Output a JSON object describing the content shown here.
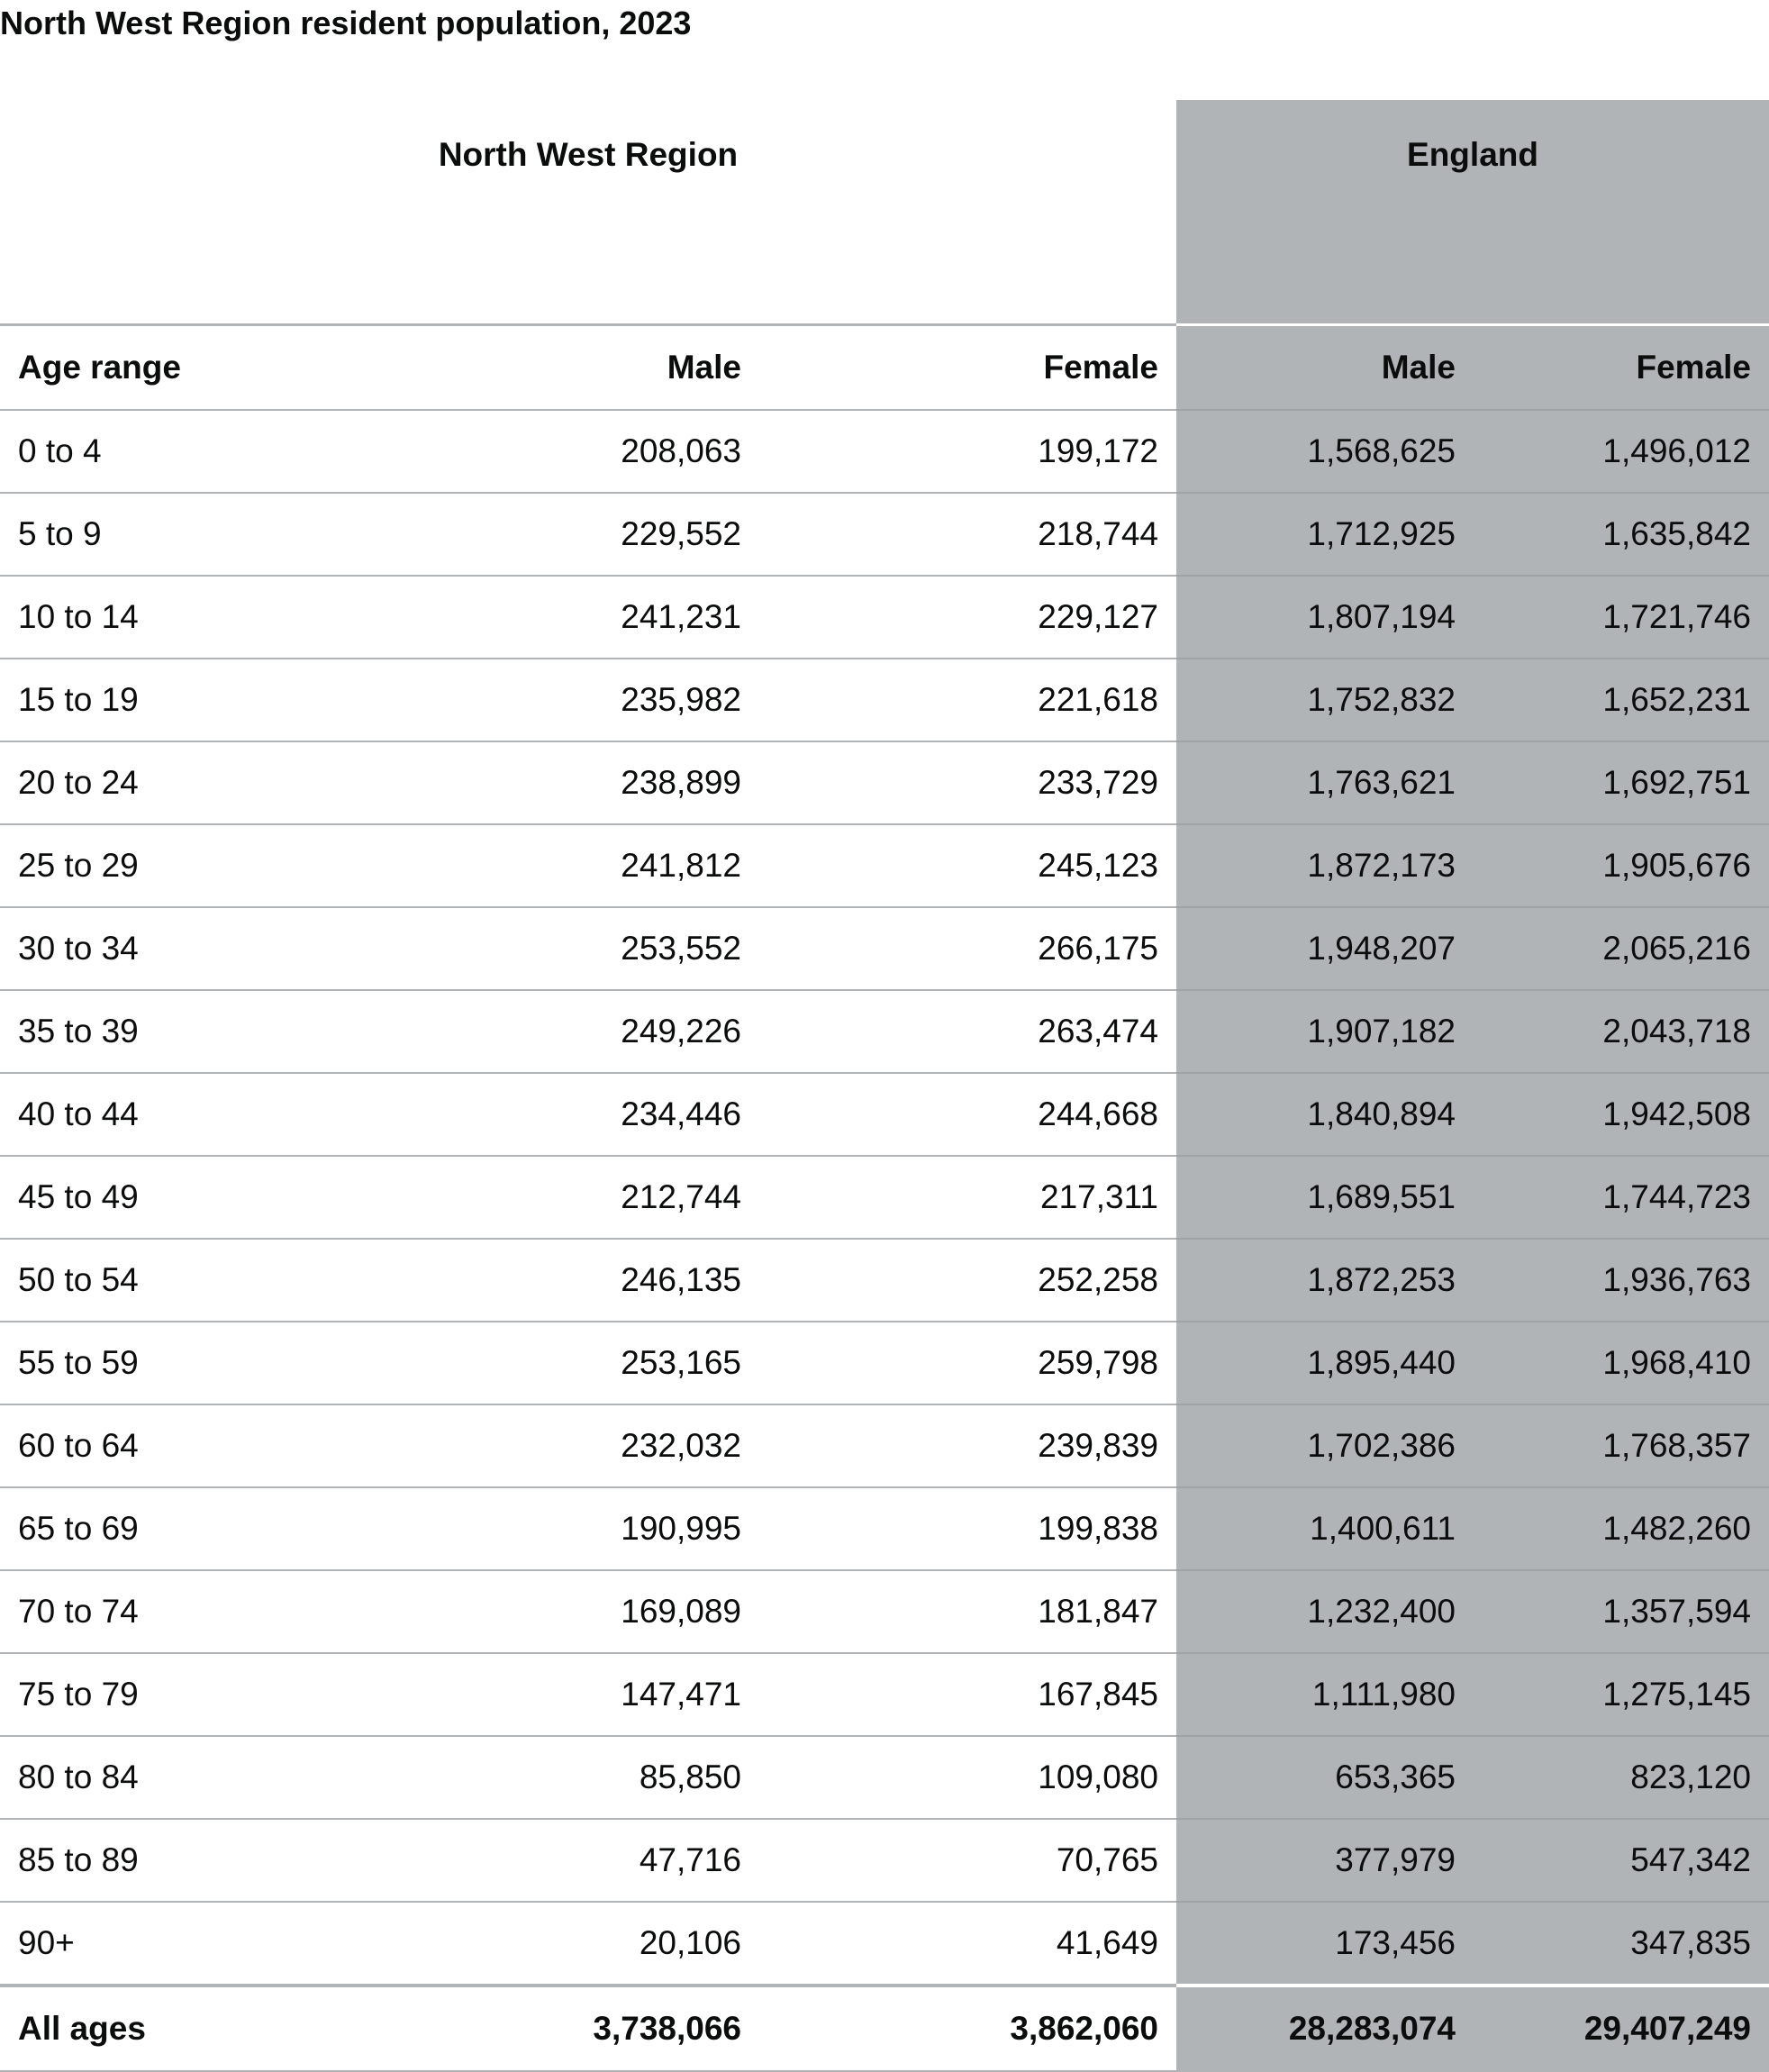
{
  "caption": "North West Region resident population, 2023",
  "groups": {
    "region": "North West Region",
    "england": "England"
  },
  "headers": {
    "age": "Age range",
    "region_male": "Male",
    "region_female": "Female",
    "eng_male": "Male",
    "eng_female": "Female"
  },
  "rows": [
    {
      "age": "0 to 4",
      "nw_male": "208,063",
      "nw_female": "199,172",
      "eng_male": "1,568,625",
      "eng_female": "1,496,012"
    },
    {
      "age": "5 to 9",
      "nw_male": "229,552",
      "nw_female": "218,744",
      "eng_male": "1,712,925",
      "eng_female": "1,635,842"
    },
    {
      "age": "10 to 14",
      "nw_male": "241,231",
      "nw_female": "229,127",
      "eng_male": "1,807,194",
      "eng_female": "1,721,746"
    },
    {
      "age": "15 to 19",
      "nw_male": "235,982",
      "nw_female": "221,618",
      "eng_male": "1,752,832",
      "eng_female": "1,652,231"
    },
    {
      "age": "20 to 24",
      "nw_male": "238,899",
      "nw_female": "233,729",
      "eng_male": "1,763,621",
      "eng_female": "1,692,751"
    },
    {
      "age": "25 to 29",
      "nw_male": "241,812",
      "nw_female": "245,123",
      "eng_male": "1,872,173",
      "eng_female": "1,905,676"
    },
    {
      "age": "30 to 34",
      "nw_male": "253,552",
      "nw_female": "266,175",
      "eng_male": "1,948,207",
      "eng_female": "2,065,216"
    },
    {
      "age": "35 to 39",
      "nw_male": "249,226",
      "nw_female": "263,474",
      "eng_male": "1,907,182",
      "eng_female": "2,043,718"
    },
    {
      "age": "40 to 44",
      "nw_male": "234,446",
      "nw_female": "244,668",
      "eng_male": "1,840,894",
      "eng_female": "1,942,508"
    },
    {
      "age": "45 to 49",
      "nw_male": "212,744",
      "nw_female": "217,311",
      "eng_male": "1,689,551",
      "eng_female": "1,744,723"
    },
    {
      "age": "50 to 54",
      "nw_male": "246,135",
      "nw_female": "252,258",
      "eng_male": "1,872,253",
      "eng_female": "1,936,763"
    },
    {
      "age": "55 to 59",
      "nw_male": "253,165",
      "nw_female": "259,798",
      "eng_male": "1,895,440",
      "eng_female": "1,968,410"
    },
    {
      "age": "60 to 64",
      "nw_male": "232,032",
      "nw_female": "239,839",
      "eng_male": "1,702,386",
      "eng_female": "1,768,357"
    },
    {
      "age": "65 to 69",
      "nw_male": "190,995",
      "nw_female": "199,838",
      "eng_male": "1,400,611",
      "eng_female": "1,482,260"
    },
    {
      "age": "70 to 74",
      "nw_male": "169,089",
      "nw_female": "181,847",
      "eng_male": "1,232,400",
      "eng_female": "1,357,594"
    },
    {
      "age": "75 to 79",
      "nw_male": "147,471",
      "nw_female": "167,845",
      "eng_male": "1,111,980",
      "eng_female": "1,275,145"
    },
    {
      "age": "80 to 84",
      "nw_male": "85,850",
      "nw_female": "109,080",
      "eng_male": "653,365",
      "eng_female": "823,120"
    },
    {
      "age": "85 to 89",
      "nw_male": "47,716",
      "nw_female": "70,765",
      "eng_male": "377,979",
      "eng_female": "547,342"
    },
    {
      "age": "90+",
      "nw_male": "20,106",
      "nw_female": "41,649",
      "eng_male": "173,456",
      "eng_female": "347,835"
    }
  ],
  "total": {
    "age": "All ages",
    "nw_male": "3,738,066",
    "nw_female": "3,862,060",
    "eng_male": "28,283,074",
    "eng_female": "29,407,249"
  },
  "colors": {
    "england_shade": "#b1b4b6",
    "border": "#b1b4b6",
    "text": "#0b0c0c"
  }
}
